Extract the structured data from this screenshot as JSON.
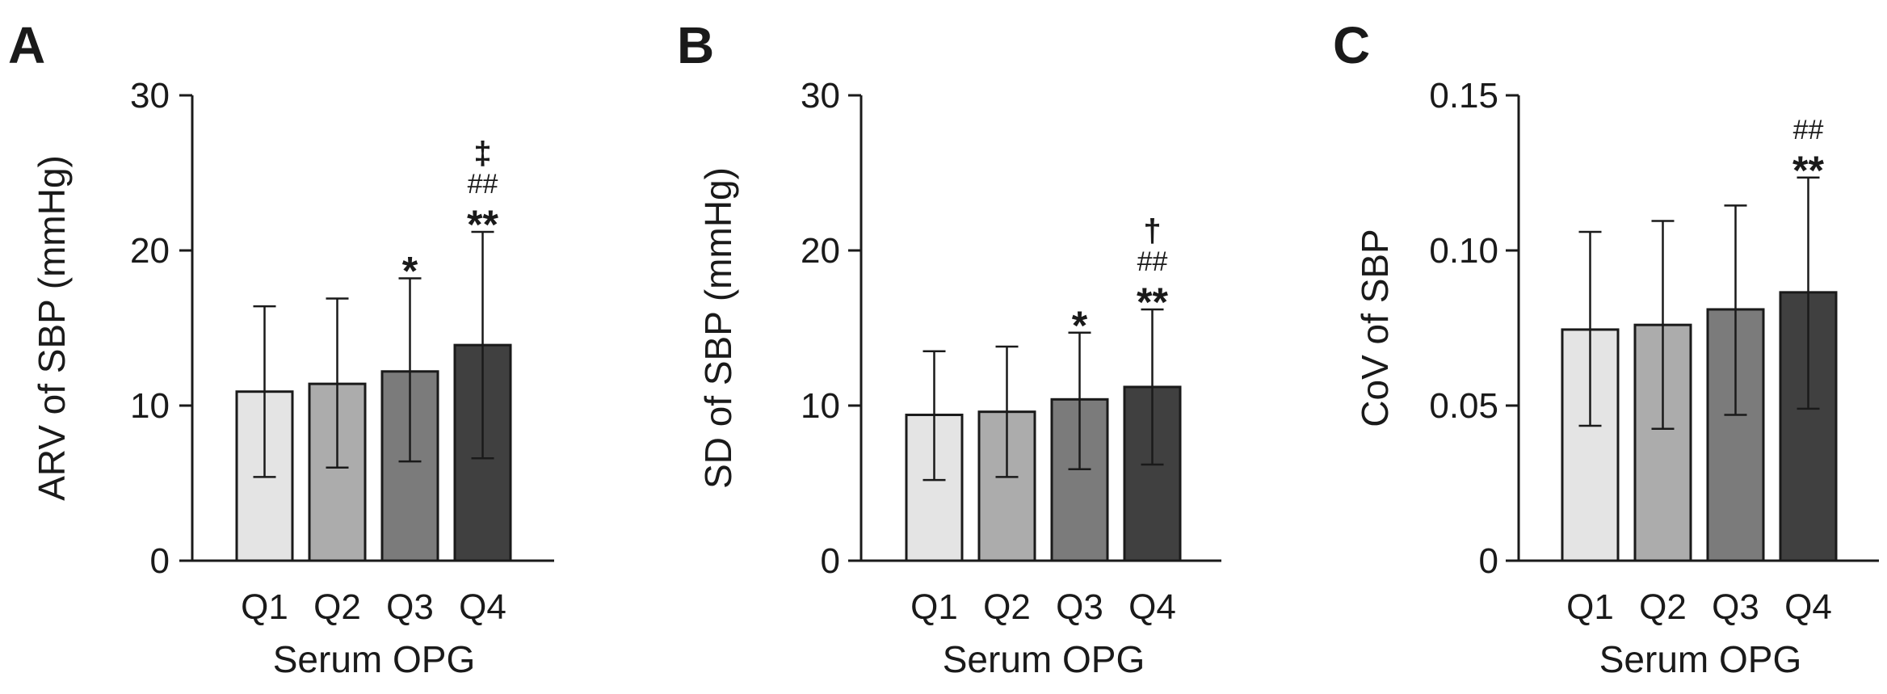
{
  "chart_data": [
    {
      "panel": "A",
      "type": "bar",
      "categories": [
        "Q1",
        "Q2",
        "Q3",
        "Q4"
      ],
      "values": [
        10.9,
        11.4,
        12.2,
        13.9
      ],
      "error_low": [
        5.4,
        6.0,
        6.4,
        6.6
      ],
      "error_high": [
        16.4,
        16.9,
        18.2,
        21.2
      ],
      "colors": [
        "#e4e4e4",
        "#acacac",
        "#7b7b7b",
        "#404040"
      ],
      "ylabel": "ARV of SBP (mmHg)",
      "xlabel": "Serum OPG",
      "ylim": [
        0,
        30
      ],
      "yticks": [
        0,
        10,
        20,
        30
      ],
      "ytick_labels": [
        "0",
        "10",
        "20",
        "30"
      ],
      "annotations": [
        [],
        [],
        [
          "*"
        ],
        [
          "**",
          "##",
          "‡"
        ]
      ]
    },
    {
      "panel": "B",
      "type": "bar",
      "categories": [
        "Q1",
        "Q2",
        "Q3",
        "Q4"
      ],
      "values": [
        9.4,
        9.6,
        10.4,
        11.2
      ],
      "error_low": [
        5.2,
        5.4,
        5.9,
        6.2
      ],
      "error_high": [
        13.5,
        13.8,
        14.7,
        16.2
      ],
      "colors": [
        "#e4e4e4",
        "#acacac",
        "#7b7b7b",
        "#404040"
      ],
      "ylabel": "SD of SBP (mmHg)",
      "xlabel": "Serum OPG",
      "ylim": [
        0,
        30
      ],
      "yticks": [
        0,
        10,
        20,
        30
      ],
      "ytick_labels": [
        "0",
        "10",
        "20",
        "30"
      ],
      "annotations": [
        [],
        [],
        [
          "*"
        ],
        [
          "**",
          "##",
          "†"
        ]
      ]
    },
    {
      "panel": "C",
      "type": "bar",
      "categories": [
        "Q1",
        "Q2",
        "Q3",
        "Q4"
      ],
      "values": [
        0.0745,
        0.076,
        0.081,
        0.0865
      ],
      "error_low": [
        0.0435,
        0.0425,
        0.047,
        0.049
      ],
      "error_high": [
        0.106,
        0.1095,
        0.1145,
        0.1235
      ],
      "colors": [
        "#e4e4e4",
        "#acacac",
        "#7b7b7b",
        "#404040"
      ],
      "ylabel": "CoV of SBP",
      "xlabel": "Serum OPG",
      "ylim": [
        0,
        0.15
      ],
      "yticks": [
        0,
        0.05,
        0.1,
        0.15
      ],
      "ytick_labels": [
        "0",
        "0.05",
        "0.10",
        "0.15"
      ],
      "annotations": [
        [],
        [],
        [],
        [
          "**",
          "##"
        ]
      ]
    }
  ]
}
